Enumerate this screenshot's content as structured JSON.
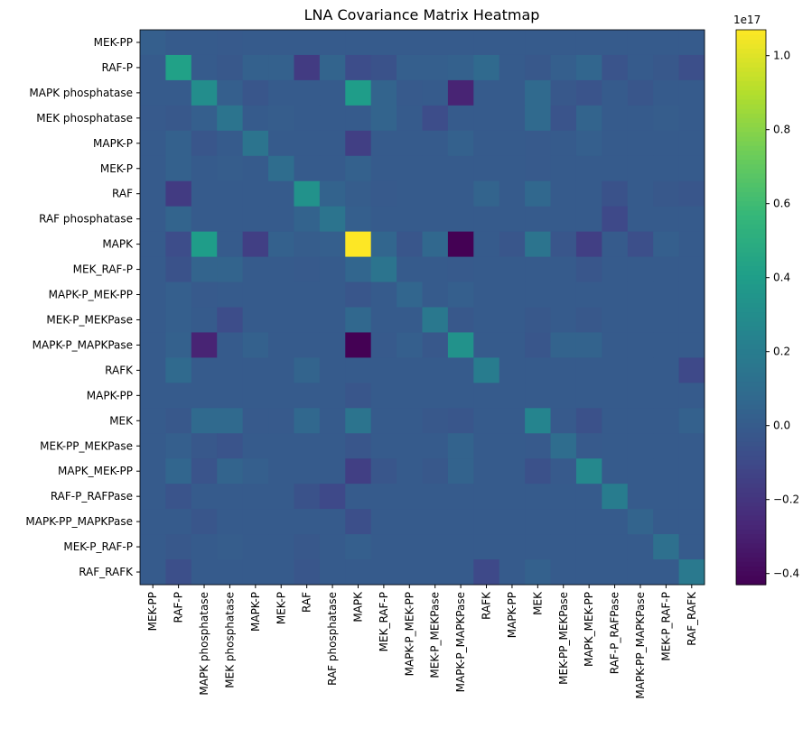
{
  "chart_data": {
    "type": "heatmap",
    "title": "LNA Covariance Matrix Heatmap",
    "categories": [
      "MEK-PP",
      "RAF-P",
      "MAPK phosphatase",
      "MEK phosphatase",
      "MAPK-P",
      "MEK-P",
      "RAF",
      "RAF phosphatase",
      "MAPK",
      "MEK_RAF-P",
      "MAPK-P_MEK-PP",
      "MEK-P_MEKPase",
      "MAPK-P_MAPKPase",
      "RAFK",
      "MAPK-PP",
      "MEK",
      "MEK-PP_MEKPase",
      "MAPK_MEK-PP",
      "RAF-P_RAFPase",
      "MAPK-PP_MAPKPase",
      "MEK-P_RAF-P",
      "RAF_RAFK"
    ],
    "values": [
      [
        0.02,
        0.0,
        0.0,
        -0.01,
        0.0,
        0.0,
        0.0,
        0.0,
        0.0,
        0.0,
        0.0,
        0.0,
        0.0,
        0.0,
        0.0,
        0.0,
        0.0,
        0.0,
        0.0,
        0.0,
        0.0,
        0.0
      ],
      [
        0.0,
        0.42,
        0.0,
        -0.02,
        0.03,
        0.03,
        -0.17,
        0.05,
        -0.08,
        -0.05,
        0.02,
        0.02,
        0.03,
        0.08,
        0.0,
        -0.02,
        0.02,
        0.06,
        -0.04,
        0.0,
        -0.02,
        -0.07
      ],
      [
        0.0,
        0.0,
        0.3,
        0.02,
        -0.03,
        0.0,
        0.0,
        0.0,
        0.4,
        0.05,
        -0.01,
        0.0,
        -0.28,
        0.0,
        0.0,
        0.08,
        -0.02,
        -0.04,
        0.0,
        -0.03,
        0.0,
        0.0
      ],
      [
        -0.01,
        -0.02,
        0.02,
        0.15,
        0.0,
        0.01,
        0.0,
        0.0,
        0.0,
        0.05,
        0.0,
        -0.08,
        0.0,
        0.0,
        0.0,
        0.08,
        -0.04,
        0.05,
        0.0,
        0.0,
        0.01,
        0.0
      ],
      [
        0.0,
        0.03,
        -0.03,
        0.0,
        0.15,
        0.0,
        0.0,
        0.0,
        -0.15,
        0.0,
        0.0,
        0.0,
        0.03,
        0.0,
        0.0,
        -0.01,
        0.0,
        0.02,
        0.0,
        0.0,
        0.0,
        0.0
      ],
      [
        0.0,
        0.03,
        0.0,
        0.01,
        0.0,
        0.1,
        0.0,
        0.0,
        0.03,
        0.0,
        0.0,
        0.0,
        0.0,
        0.0,
        0.0,
        -0.01,
        0.0,
        0.0,
        0.0,
        0.0,
        0.0,
        0.0
      ],
      [
        0.0,
        -0.17,
        0.0,
        0.0,
        0.0,
        0.0,
        0.33,
        0.04,
        0.01,
        -0.01,
        0.0,
        0.0,
        0.0,
        0.05,
        0.0,
        0.07,
        0.0,
        0.0,
        -0.05,
        0.0,
        -0.02,
        -0.03
      ],
      [
        0.0,
        0.05,
        0.0,
        0.0,
        0.0,
        0.0,
        0.04,
        0.15,
        0.02,
        0.0,
        0.0,
        0.0,
        0.0,
        0.0,
        0.0,
        0.0,
        0.0,
        0.0,
        -0.1,
        0.0,
        0.0,
        0.0
      ],
      [
        0.0,
        -0.08,
        0.4,
        0.0,
        -0.15,
        0.03,
        0.01,
        0.02,
        1.07,
        0.06,
        -0.03,
        0.07,
        -0.43,
        0.0,
        -0.03,
        0.15,
        -0.03,
        -0.15,
        0.0,
        -0.07,
        0.02,
        0.0
      ],
      [
        0.0,
        -0.05,
        0.05,
        0.05,
        0.0,
        0.0,
        -0.01,
        0.0,
        0.06,
        0.15,
        0.0,
        0.0,
        -0.01,
        0.0,
        0.0,
        0.0,
        0.0,
        -0.03,
        0.0,
        0.0,
        0.0,
        0.0
      ],
      [
        0.0,
        0.02,
        -0.01,
        0.0,
        0.0,
        0.0,
        0.0,
        0.0,
        -0.03,
        0.0,
        0.06,
        0.0,
        0.02,
        0.0,
        0.0,
        0.0,
        0.0,
        0.0,
        0.0,
        0.0,
        0.0,
        0.0
      ],
      [
        0.0,
        0.02,
        0.0,
        -0.08,
        0.0,
        0.0,
        0.0,
        0.0,
        0.07,
        0.0,
        0.0,
        0.17,
        -0.02,
        0.0,
        0.0,
        -0.02,
        0.0,
        -0.02,
        0.0,
        0.0,
        0.0,
        0.0
      ],
      [
        0.0,
        0.03,
        -0.28,
        0.0,
        0.03,
        0.0,
        0.0,
        0.0,
        -0.43,
        -0.01,
        0.02,
        -0.02,
        0.33,
        0.0,
        0.0,
        -0.03,
        0.04,
        0.04,
        0.0,
        0.0,
        0.0,
        0.0
      ],
      [
        0.0,
        0.08,
        0.0,
        0.0,
        0.0,
        0.0,
        0.05,
        0.0,
        0.0,
        0.0,
        0.0,
        0.0,
        0.0,
        0.2,
        0.0,
        0.0,
        0.0,
        0.0,
        0.0,
        0.0,
        0.0,
        -0.1
      ],
      [
        0.0,
        0.0,
        0.0,
        0.0,
        0.0,
        0.0,
        0.0,
        0.0,
        -0.03,
        0.0,
        0.0,
        0.0,
        0.0,
        0.0,
        0.0,
        0.0,
        0.0,
        0.0,
        0.0,
        0.0,
        0.0,
        0.0
      ],
      [
        0.0,
        -0.02,
        0.08,
        0.08,
        -0.01,
        -0.01,
        0.07,
        0.0,
        0.15,
        0.0,
        0.0,
        -0.02,
        -0.03,
        0.0,
        0.0,
        0.25,
        -0.01,
        -0.06,
        0.0,
        0.0,
        0.0,
        0.03
      ],
      [
        0.0,
        0.02,
        -0.02,
        -0.04,
        0.0,
        0.0,
        0.0,
        0.0,
        -0.03,
        0.0,
        0.0,
        0.0,
        0.04,
        0.0,
        0.0,
        -0.01,
        0.1,
        -0.01,
        0.0,
        0.0,
        0.0,
        0.0
      ],
      [
        0.0,
        0.06,
        -0.04,
        0.05,
        0.02,
        0.0,
        0.0,
        0.0,
        -0.15,
        -0.03,
        0.0,
        -0.02,
        0.04,
        0.0,
        0.0,
        -0.06,
        -0.01,
        0.27,
        0.0,
        0.0,
        0.0,
        0.0
      ],
      [
        0.0,
        -0.04,
        0.0,
        0.0,
        0.0,
        0.0,
        -0.05,
        -0.1,
        0.0,
        0.0,
        0.0,
        0.0,
        0.0,
        0.0,
        0.0,
        0.0,
        0.0,
        0.0,
        0.2,
        0.0,
        0.0,
        0.0
      ],
      [
        0.0,
        0.0,
        -0.03,
        0.0,
        0.0,
        0.0,
        0.0,
        0.0,
        -0.07,
        0.0,
        0.0,
        0.0,
        0.0,
        0.0,
        0.0,
        0.0,
        0.0,
        0.0,
        0.0,
        0.05,
        0.0,
        0.0
      ],
      [
        0.0,
        -0.02,
        0.0,
        0.01,
        0.0,
        0.0,
        -0.02,
        0.0,
        0.02,
        0.0,
        0.0,
        0.0,
        0.0,
        0.0,
        0.0,
        0.0,
        0.0,
        0.0,
        0.0,
        0.0,
        0.12,
        0.0
      ],
      [
        0.0,
        -0.07,
        0.0,
        0.0,
        0.0,
        0.0,
        -0.03,
        0.0,
        0.0,
        0.0,
        0.0,
        0.0,
        0.0,
        -0.1,
        0.0,
        0.03,
        0.0,
        0.0,
        0.0,
        0.0,
        0.0,
        0.18
      ]
    ],
    "colormap": "viridis",
    "clim": [
      -0.43,
      1.07
    ],
    "cticks": [
      {
        "value": -0.4,
        "label": "−0.4"
      },
      {
        "value": -0.2,
        "label": "−0.2"
      },
      {
        "value": 0,
        "label": "0.0"
      },
      0.2,
      0.4,
      0.6,
      0.8,
      {
        "value": 1,
        "label": "1.0"
      }
    ],
    "colorbar_offset": "1e17"
  }
}
